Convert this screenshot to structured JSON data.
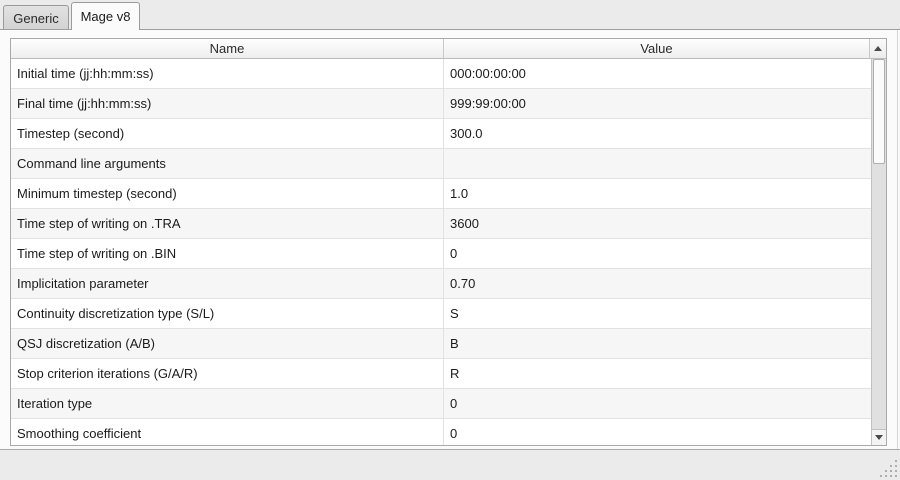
{
  "tabs": [
    {
      "label": "Generic",
      "active": false
    },
    {
      "label": "Mage v8",
      "active": true
    }
  ],
  "table": {
    "columns": [
      "Name",
      "Value"
    ],
    "rows": [
      {
        "name": "Initial time (jj:hh:mm:ss)",
        "value": "000:00:00:00"
      },
      {
        "name": "Final time (jj:hh:mm:ss)",
        "value": "999:99:00:00"
      },
      {
        "name": "Timestep (second)",
        "value": "300.0"
      },
      {
        "name": "Command line arguments",
        "value": ""
      },
      {
        "name": "Minimum timestep (second)",
        "value": "1.0"
      },
      {
        "name": "Time step of writing on .TRA",
        "value": "3600"
      },
      {
        "name": "Time step of writing on .BIN",
        "value": "0"
      },
      {
        "name": "Implicitation parameter",
        "value": "0.70"
      },
      {
        "name": "Continuity discretization type (S/L)",
        "value": "S"
      },
      {
        "name": "QSJ discretization (A/B)",
        "value": "B"
      },
      {
        "name": "Stop criterion iterations (G/A/R)",
        "value": "R"
      },
      {
        "name": "Iteration type",
        "value": "0"
      },
      {
        "name": "Smoothing coefficient",
        "value": "0"
      }
    ]
  },
  "scrollbar": {
    "orientation": "vertical",
    "thumb_position": "top"
  },
  "colors": {
    "window_bg": "#ebebeb",
    "panel_bg": "#fbfbfb",
    "row_alt_bg": "#f6f6f6",
    "border": "#a9a9a9",
    "text": "#1b1b1b"
  }
}
